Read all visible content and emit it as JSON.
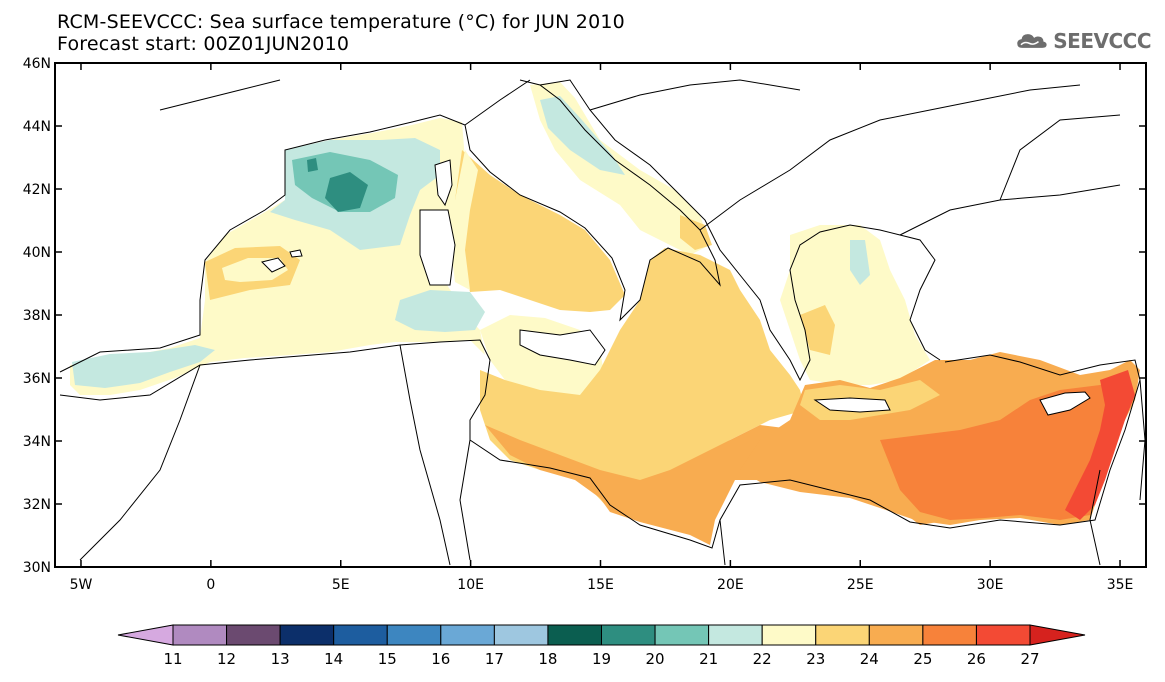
{
  "title": {
    "line1": "RCM-SEEVCCC: Sea surface temperature (°C) for JUN 2010",
    "line2": "Forecast start: 00Z01JUN2010"
  },
  "logo": {
    "text": "SEEVCCC",
    "icon": "cloud-icon"
  },
  "map": {
    "lat_labels": [
      "46N",
      "44N",
      "42N",
      "40N",
      "38N",
      "36N",
      "34N",
      "32N",
      "30N"
    ],
    "lon_labels": [
      "5W",
      "0",
      "5E",
      "10E",
      "15E",
      "20E",
      "25E",
      "30E",
      "35E"
    ],
    "lon_range": [
      -6,
      36
    ],
    "lat_range": [
      30,
      46
    ]
  },
  "colorbar": {
    "labels": [
      "11",
      "12",
      "13",
      "14",
      "15",
      "16",
      "17",
      "18",
      "19",
      "20",
      "21",
      "22",
      "23",
      "24",
      "25",
      "26",
      "27"
    ],
    "colors": [
      "#d6a9e0",
      "#b08ac0",
      "#6b4a70",
      "#0c2f6a",
      "#1d5d9f",
      "#3d86c0",
      "#6aa8d6",
      "#9ec7e0",
      "#0b5e50",
      "#2e8e80",
      "#74c6b6",
      "#c4e8e0",
      "#fefac8",
      "#fbd576",
      "#f8ac50",
      "#f7823a",
      "#f34a34",
      "#d6221e"
    ]
  },
  "contour_colors": {
    "c20": "#74c6b6",
    "c21": "#c4e8e0",
    "c22": "#fefac8",
    "c23": "#fbd576",
    "c24": "#f8ac50",
    "c25": "#f7823a",
    "c26": "#f34a34"
  }
}
